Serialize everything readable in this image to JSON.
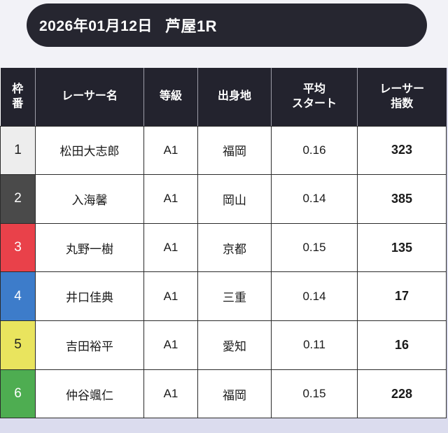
{
  "header": {
    "date": "2026年01月12日",
    "race": "芦屋1R"
  },
  "colors": {
    "page_top_bg": "#f2f2f7",
    "page_bottom_bg": "#dbdcee",
    "pill_bg": "#262630",
    "table_header_bg": "#23232e",
    "grid_border": "#2b2b2b",
    "header_separator": "#9d9da8"
  },
  "table": {
    "columns": [
      {
        "key": "waku",
        "label": "枠番",
        "lines": [
          "枠",
          "番"
        ]
      },
      {
        "key": "name",
        "label": "レーサー名",
        "lines": [
          "レーサー名"
        ]
      },
      {
        "key": "grade",
        "label": "等級",
        "lines": [
          "等級"
        ]
      },
      {
        "key": "origin",
        "label": "出身地",
        "lines": [
          "出身地"
        ]
      },
      {
        "key": "avg_start",
        "label": "平均スタート",
        "lines": [
          "平均",
          "スタート"
        ]
      },
      {
        "key": "index",
        "label": "レーサー指数",
        "lines": [
          "レーサー",
          "指数"
        ]
      }
    ],
    "rows": [
      {
        "waku": "1",
        "name": "松田大志郎",
        "grade": "A1",
        "origin": "福岡",
        "avg_start": "0.16",
        "index": "323",
        "waku_bg": "#ededed",
        "waku_text": "#1f1f1f"
      },
      {
        "waku": "2",
        "name": "入海馨",
        "grade": "A1",
        "origin": "岡山",
        "avg_start": "0.14",
        "index": "385",
        "waku_bg": "#4a4a4a",
        "waku_text": "#ffffff"
      },
      {
        "waku": "3",
        "name": "丸野一樹",
        "grade": "A1",
        "origin": "京都",
        "avg_start": "0.15",
        "index": "135",
        "waku_bg": "#e9414a",
        "waku_text": "#ffffff"
      },
      {
        "waku": "4",
        "name": "井口佳典",
        "grade": "A1",
        "origin": "三重",
        "avg_start": "0.14",
        "index": "17",
        "waku_bg": "#3d7cca",
        "waku_text": "#ffffff"
      },
      {
        "waku": "5",
        "name": "吉田裕平",
        "grade": "A1",
        "origin": "愛知",
        "avg_start": "0.11",
        "index": "16",
        "waku_bg": "#e9e45e",
        "waku_text": "#1f1f1f"
      },
      {
        "waku": "6",
        "name": "仲谷颯仁",
        "grade": "A1",
        "origin": "福岡",
        "avg_start": "0.15",
        "index": "228",
        "waku_bg": "#4ead51",
        "waku_text": "#ffffff"
      }
    ]
  }
}
